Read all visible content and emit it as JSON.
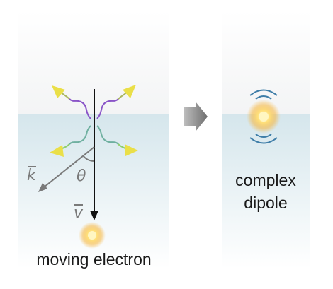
{
  "left_panel": {
    "caption": "moving electron",
    "wavevector_label": "k",
    "angle_label": "θ",
    "velocity_label": "v"
  },
  "transition_arrow_icon": "chevron-right-arrow",
  "right_panel": {
    "caption_line1": "complex",
    "caption_line2": "dipole"
  },
  "colors": {
    "glass_top": "#f6f7f8",
    "medium_fill": "#d9e8ee",
    "interface_line": "#bcd3dc",
    "electron_core": "#fff4b0",
    "electron_glow": "#f4b13a",
    "photon_arrow": "#eadf48",
    "wave_purple": "#8a55c8",
    "wave_green": "#8fcf6e",
    "dipole_arcs": "#3f7ea8",
    "trajectory": "#111111",
    "k_vector": "#7a7a7a"
  }
}
